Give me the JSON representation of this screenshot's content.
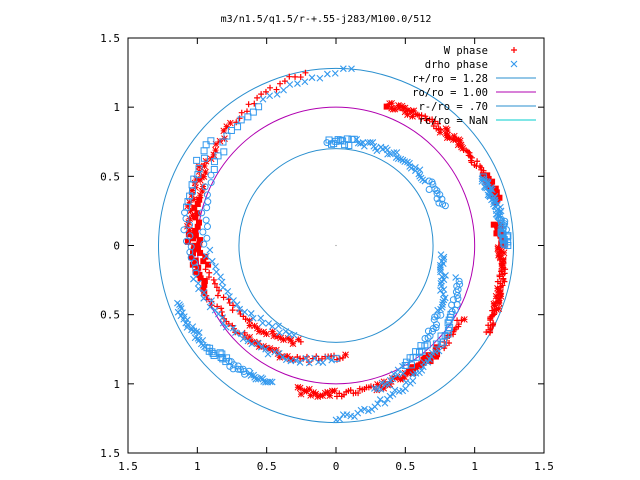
{
  "chart_data": {
    "type": "scatter",
    "title": "m3/n1.5/q1.5/r-+.55-j283/M100.0/512",
    "xlabel": "",
    "ylabel": "",
    "xlim": [
      -1.5,
      1.5
    ],
    "ylim": [
      -1.5,
      1.5
    ],
    "xtick_values": [
      -1.5,
      -1.0,
      -0.5,
      0,
      0.5,
      1.0,
      1.5
    ],
    "xtick_labels": [
      "1.5",
      "1",
      "0.5",
      "0",
      "0.5",
      "1",
      "1.5"
    ],
    "ytick_values": [
      1.5,
      1.0,
      0.5,
      0,
      -0.5,
      -1.0,
      -1.5
    ],
    "ytick_labels": [
      "1.5",
      "1",
      "0.5",
      "0",
      "0.5",
      "1",
      "1.5"
    ],
    "grid": false,
    "legend_position": "top-right",
    "series": [
      {
        "name": "W phase",
        "marker": "plus-star-square",
        "color": "#ff0000",
        "arms": [
          {
            "r0": 1.26,
            "r1": 0.74,
            "t0": 100,
            "t1": 250
          },
          {
            "r0": 1.12,
            "r1": 0.8,
            "t0": 150,
            "t1": 275
          },
          {
            "r0": 1.21,
            "r1": 1.08,
            "t0": 15,
            "t1": 70
          },
          {
            "r0": 1.26,
            "r1": 1.17,
            "t0": -30,
            "t1": 8
          },
          {
            "r0": 1.08,
            "r1": 1.05,
            "t0": 255,
            "t1": 330
          }
        ],
        "count": 420
      },
      {
        "name": "drho phase",
        "marker": "x-square-circle",
        "color": "#3399ee",
        "arms": [
          {
            "r0": 1.27,
            "r1": 0.7,
            "t0": 85,
            "t1": 245
          },
          {
            "r0": 1.18,
            "r1": 0.82,
            "t0": 140,
            "t1": 270
          },
          {
            "r0": 0.82,
            "r1": 0.74,
            "t0": 20,
            "t1": 95
          },
          {
            "r0": 1.25,
            "r1": 0.9,
            "t0": 270,
            "t1": 345
          },
          {
            "r0": 1.23,
            "r1": 1.1,
            "t0": 200,
            "t1": 245
          },
          {
            "r0": 1.08,
            "r1": 0.76,
            "t0": 285,
            "t1": 355
          },
          {
            "r0": 1.23,
            "r1": 1.16,
            "t0": 0,
            "t1": 25
          }
        ],
        "count": 430
      },
      {
        "name": "r+/ro = 1.28",
        "type": "circle",
        "radius": 1.28,
        "color": "#2a8fcf"
      },
      {
        "name": "ro/ro = 1.00",
        "type": "circle",
        "radius": 1.0,
        "color": "#b000b0"
      },
      {
        "name": "r-/ro = .70",
        "type": "circle",
        "radius": 0.7,
        "color": "#2a8fcf"
      },
      {
        "name": "rc/ro = NaN",
        "type": "circle",
        "radius": null,
        "color": "#00cccc"
      }
    ]
  }
}
